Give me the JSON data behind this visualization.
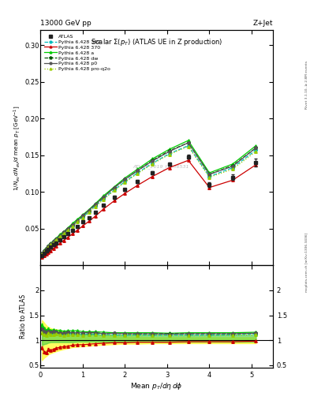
{
  "title_left": "13000 GeV pp",
  "title_right": "Z+Jet",
  "plot_title": "Scalar Σ(p_T) (ATLAS UE in Z production)",
  "watermark": "ATLAS_2019_I1736531",
  "right_label": "mcplots.cern.ch [arXiv:1306.3436]",
  "right_label2": "Rivet 3.1.10, ≥ 2.8M events",
  "x_data": [
    0.04,
    0.09,
    0.14,
    0.19,
    0.25,
    0.31,
    0.38,
    0.46,
    0.55,
    0.65,
    0.76,
    0.88,
    1.01,
    1.15,
    1.3,
    1.5,
    1.75,
    2.0,
    2.3,
    2.65,
    3.05,
    3.5,
    4.0,
    4.55,
    5.1
  ],
  "atlas_y": [
    0.013,
    0.017,
    0.02,
    0.022,
    0.025,
    0.028,
    0.031,
    0.035,
    0.039,
    0.043,
    0.048,
    0.053,
    0.059,
    0.065,
    0.072,
    0.082,
    0.093,
    0.103,
    0.114,
    0.126,
    0.138,
    0.148,
    0.11,
    0.12,
    0.14
  ],
  "atlas_yerr": [
    0.001,
    0.001,
    0.001,
    0.001,
    0.001,
    0.001,
    0.001,
    0.001,
    0.001,
    0.001,
    0.001,
    0.001,
    0.001,
    0.001,
    0.001,
    0.001,
    0.002,
    0.002,
    0.002,
    0.002,
    0.002,
    0.003,
    0.003,
    0.004,
    0.005
  ],
  "p359_y": [
    0.016,
    0.02,
    0.023,
    0.026,
    0.029,
    0.032,
    0.036,
    0.04,
    0.044,
    0.049,
    0.054,
    0.06,
    0.066,
    0.073,
    0.081,
    0.091,
    0.103,
    0.114,
    0.126,
    0.139,
    0.152,
    0.163,
    0.121,
    0.133,
    0.157
  ],
  "p370_y": [
    0.011,
    0.013,
    0.015,
    0.018,
    0.02,
    0.023,
    0.026,
    0.03,
    0.034,
    0.038,
    0.043,
    0.048,
    0.054,
    0.06,
    0.067,
    0.077,
    0.088,
    0.098,
    0.109,
    0.121,
    0.133,
    0.143,
    0.106,
    0.116,
    0.137
  ],
  "pa_y": [
    0.017,
    0.021,
    0.024,
    0.027,
    0.03,
    0.034,
    0.037,
    0.042,
    0.046,
    0.051,
    0.057,
    0.063,
    0.069,
    0.076,
    0.084,
    0.095,
    0.107,
    0.119,
    0.131,
    0.145,
    0.158,
    0.17,
    0.126,
    0.138,
    0.163
  ],
  "pdw_y": [
    0.016,
    0.02,
    0.023,
    0.026,
    0.029,
    0.033,
    0.036,
    0.04,
    0.045,
    0.05,
    0.055,
    0.061,
    0.068,
    0.075,
    0.083,
    0.093,
    0.106,
    0.117,
    0.129,
    0.143,
    0.156,
    0.167,
    0.124,
    0.136,
    0.16
  ],
  "pp0_y": [
    0.016,
    0.02,
    0.023,
    0.026,
    0.029,
    0.033,
    0.036,
    0.04,
    0.045,
    0.05,
    0.055,
    0.061,
    0.068,
    0.075,
    0.083,
    0.093,
    0.106,
    0.117,
    0.129,
    0.142,
    0.155,
    0.167,
    0.124,
    0.135,
    0.16
  ],
  "pq2o_y": [
    0.015,
    0.019,
    0.022,
    0.025,
    0.028,
    0.031,
    0.035,
    0.039,
    0.043,
    0.048,
    0.053,
    0.059,
    0.065,
    0.072,
    0.08,
    0.09,
    0.102,
    0.113,
    0.125,
    0.138,
    0.151,
    0.162,
    0.12,
    0.131,
    0.155
  ],
  "ratio_359": [
    1.25,
    1.2,
    1.15,
    1.18,
    1.16,
    1.14,
    1.16,
    1.14,
    1.13,
    1.14,
    1.13,
    1.13,
    1.12,
    1.12,
    1.12,
    1.11,
    1.11,
    1.1,
    1.11,
    1.1,
    1.1,
    1.1,
    1.1,
    1.11,
    1.12
  ],
  "ratio_370": [
    0.85,
    0.76,
    0.75,
    0.82,
    0.8,
    0.82,
    0.84,
    0.86,
    0.87,
    0.88,
    0.9,
    0.91,
    0.91,
    0.92,
    0.93,
    0.94,
    0.95,
    0.95,
    0.96,
    0.96,
    0.96,
    0.97,
    0.97,
    0.97,
    0.98
  ],
  "ratio_a": [
    1.31,
    1.24,
    1.2,
    1.23,
    1.2,
    1.21,
    1.19,
    1.2,
    1.18,
    1.19,
    1.19,
    1.19,
    1.17,
    1.17,
    1.17,
    1.16,
    1.15,
    1.15,
    1.15,
    1.15,
    1.14,
    1.15,
    1.15,
    1.15,
    1.16
  ],
  "ratio_dw": [
    1.23,
    1.18,
    1.15,
    1.18,
    1.16,
    1.18,
    1.16,
    1.14,
    1.15,
    1.16,
    1.15,
    1.15,
    1.15,
    1.15,
    1.15,
    1.13,
    1.14,
    1.13,
    1.13,
    1.13,
    1.13,
    1.13,
    1.13,
    1.13,
    1.14
  ],
  "ratio_p0": [
    1.23,
    1.18,
    1.15,
    1.18,
    1.16,
    1.18,
    1.16,
    1.14,
    1.15,
    1.16,
    1.15,
    1.15,
    1.15,
    1.15,
    1.15,
    1.13,
    1.14,
    1.13,
    1.13,
    1.13,
    1.12,
    1.13,
    1.13,
    1.13,
    1.14
  ],
  "ratio_q2o": [
    1.15,
    1.12,
    1.1,
    1.14,
    1.12,
    1.11,
    1.13,
    1.11,
    1.1,
    1.12,
    1.11,
    1.11,
    1.1,
    1.11,
    1.11,
    1.1,
    1.1,
    1.1,
    1.1,
    1.1,
    1.09,
    1.09,
    1.09,
    1.1,
    1.11
  ],
  "ratio_359_err": [
    0.02,
    0.02,
    0.02,
    0.02,
    0.01,
    0.01,
    0.01,
    0.01,
    0.01,
    0.01,
    0.01,
    0.01,
    0.01,
    0.01,
    0.01,
    0.01,
    0.01,
    0.01,
    0.01,
    0.01,
    0.01,
    0.01,
    0.01,
    0.01,
    0.01
  ],
  "ratio_370_err": [
    0.02,
    0.02,
    0.02,
    0.02,
    0.01,
    0.01,
    0.01,
    0.01,
    0.01,
    0.01,
    0.01,
    0.01,
    0.01,
    0.01,
    0.01,
    0.01,
    0.01,
    0.01,
    0.01,
    0.01,
    0.01,
    0.01,
    0.01,
    0.01,
    0.01
  ],
  "ratio_a_err": [
    0.02,
    0.02,
    0.02,
    0.02,
    0.01,
    0.01,
    0.01,
    0.01,
    0.01,
    0.01,
    0.01,
    0.01,
    0.01,
    0.01,
    0.01,
    0.01,
    0.01,
    0.01,
    0.01,
    0.01,
    0.01,
    0.01,
    0.01,
    0.01,
    0.01
  ],
  "ratio_dw_err": [
    0.02,
    0.02,
    0.02,
    0.02,
    0.01,
    0.01,
    0.01,
    0.01,
    0.01,
    0.01,
    0.01,
    0.01,
    0.01,
    0.01,
    0.01,
    0.01,
    0.01,
    0.01,
    0.01,
    0.01,
    0.01,
    0.01,
    0.01,
    0.01,
    0.01
  ],
  "ratio_p0_err": [
    0.02,
    0.02,
    0.02,
    0.02,
    0.01,
    0.01,
    0.01,
    0.01,
    0.01,
    0.01,
    0.01,
    0.01,
    0.01,
    0.01,
    0.01,
    0.01,
    0.01,
    0.01,
    0.01,
    0.01,
    0.01,
    0.01,
    0.01,
    0.01,
    0.01
  ],
  "ratio_q2o_err": [
    0.02,
    0.02,
    0.02,
    0.02,
    0.01,
    0.01,
    0.01,
    0.01,
    0.01,
    0.01,
    0.01,
    0.01,
    0.01,
    0.01,
    0.01,
    0.01,
    0.01,
    0.01,
    0.01,
    0.01,
    0.01,
    0.01,
    0.01,
    0.01,
    0.01
  ],
  "band_yellow_lo": [
    0.6,
    0.65,
    0.68,
    0.72,
    0.74,
    0.76,
    0.78,
    0.8,
    0.82,
    0.84,
    0.86,
    0.87,
    0.88,
    0.89,
    0.9,
    0.91,
    0.92,
    0.93,
    0.93,
    0.94,
    0.94,
    0.94,
    0.94,
    0.94,
    0.94
  ],
  "band_yellow_hi": [
    1.4,
    1.35,
    1.3,
    1.26,
    1.24,
    1.22,
    1.22,
    1.2,
    1.18,
    1.16,
    1.14,
    1.13,
    1.12,
    1.11,
    1.1,
    1.09,
    1.08,
    1.07,
    1.07,
    1.06,
    1.06,
    1.06,
    1.06,
    1.06,
    1.06
  ],
  "band_green_lo": [
    0.9,
    0.92,
    0.93,
    0.95,
    0.96,
    0.96,
    0.96,
    0.96,
    0.96,
    0.96,
    0.96,
    0.97,
    0.97,
    0.97,
    0.97,
    0.97,
    0.97,
    0.97,
    0.97,
    0.97,
    0.97,
    0.97,
    0.97,
    0.97,
    0.97
  ],
  "band_green_hi": [
    1.18,
    1.16,
    1.14,
    1.13,
    1.12,
    1.12,
    1.12,
    1.12,
    1.12,
    1.12,
    1.12,
    1.12,
    1.12,
    1.12,
    1.12,
    1.11,
    1.11,
    1.1,
    1.1,
    1.1,
    1.1,
    1.1,
    1.1,
    1.1,
    1.1
  ],
  "color_atlas": "#222222",
  "color_359": "#00BBBB",
  "color_370": "#CC0000",
  "color_a": "#00CC00",
  "color_dw": "#005500",
  "color_p0": "#555555",
  "color_q2o": "#99CC00",
  "xlim": [
    0.0,
    5.5
  ],
  "ylim_main": [
    0.0,
    0.32
  ],
  "ylim_ratio": [
    0.45,
    2.5
  ],
  "ratio_yticks": [
    0.5,
    1.0,
    1.5,
    2.0
  ],
  "main_yticks": [
    0.05,
    0.1,
    0.15,
    0.2,
    0.25,
    0.3
  ]
}
